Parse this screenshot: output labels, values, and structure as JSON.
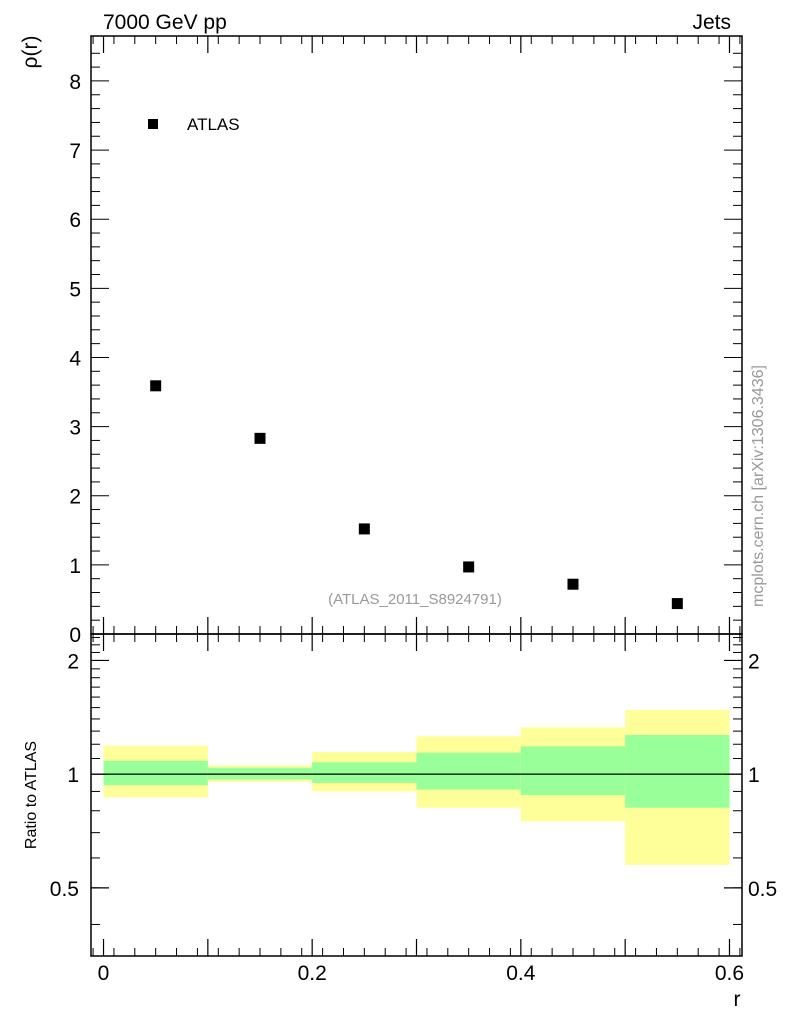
{
  "header": {
    "left_title": "7000 GeV pp",
    "right_title": "Jets"
  },
  "side_label": "mcplots.cern.ch [arXiv:1306.3436]",
  "analysis_label": "(ATLAS_2011_S8924791)",
  "colors": {
    "band_outer": "#ffff99",
    "band_inner": "#99ff99",
    "marker": "#000000",
    "ratio_line": "#000000"
  },
  "chart_data": [
    {
      "type": "scatter",
      "title": "",
      "xlabel": "r",
      "ylabel": "ρ(r)",
      "xlim": [
        -0.012,
        0.612
      ],
      "ylim": [
        0,
        8.65
      ],
      "yticks": [
        0,
        1,
        2,
        3,
        4,
        5,
        6,
        7,
        8
      ],
      "legend": {
        "placement": "top-left",
        "entries": [
          "ATLAS"
        ]
      },
      "series": [
        {
          "name": "ATLAS",
          "x": [
            0.05,
            0.15,
            0.25,
            0.35,
            0.45,
            0.55
          ],
          "y": [
            3.59,
            2.83,
            1.52,
            0.97,
            0.72,
            0.44
          ]
        }
      ]
    },
    {
      "type": "area",
      "title": "",
      "xlabel": "r",
      "ylabel": "Ratio to ATLAS",
      "xlim": [
        -0.012,
        0.612
      ],
      "ylim": [
        0.33,
        2.35
      ],
      "ylog": true,
      "yticks": [
        0.5,
        1,
        2
      ],
      "xticks": [
        0,
        0.2,
        0.4,
        0.6
      ],
      "reference": 1,
      "bins": [
        {
          "lo": 0.0,
          "hi": 0.1,
          "outer": [
            0.868,
            1.19
          ],
          "inner": [
            0.935,
            1.085
          ]
        },
        {
          "lo": 0.1,
          "hi": 0.2,
          "outer": [
            0.955,
            1.055
          ],
          "inner": [
            0.968,
            1.04
          ]
        },
        {
          "lo": 0.2,
          "hi": 0.3,
          "outer": [
            0.9,
            1.145
          ],
          "inner": [
            0.948,
            1.075
          ]
        },
        {
          "lo": 0.3,
          "hi": 0.4,
          "outer": [
            0.815,
            1.26
          ],
          "inner": [
            0.91,
            1.14
          ]
        },
        {
          "lo": 0.4,
          "hi": 0.5,
          "outer": [
            0.75,
            1.33
          ],
          "inner": [
            0.88,
            1.185
          ]
        },
        {
          "lo": 0.5,
          "hi": 0.6,
          "outer": [
            0.575,
            1.48
          ],
          "inner": [
            0.815,
            1.27
          ]
        }
      ]
    }
  ]
}
